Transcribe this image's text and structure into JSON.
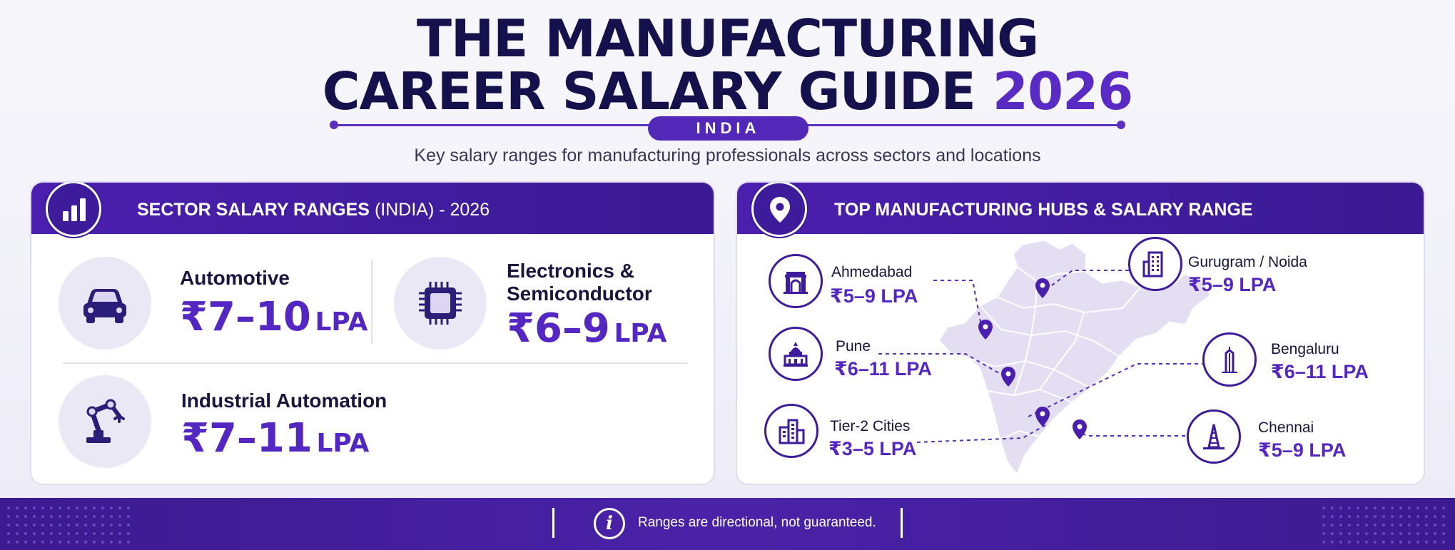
{
  "header": {
    "title_line1": "THE MANUFACTURING",
    "title_line2_main": "CAREER SALARY GUIDE",
    "title_line2_accent": "2026",
    "country_pill": "INDIA",
    "subtitle": "Key salary ranges for manufacturing professionals across sectors and locations"
  },
  "sectors_panel": {
    "title_bold": "SECTOR SALARY RANGES",
    "title_light": "(INDIA) - 2026",
    "icon": "bar-chart-icon",
    "sectors": [
      {
        "name": "Automotive",
        "range": "₹7–10",
        "unit": "LPA",
        "icon": "car-icon"
      },
      {
        "name_line1": "Electronics &",
        "name_line2": "Semiconductor",
        "range": "₹6–9",
        "unit": "LPA",
        "icon": "microchip-icon"
      },
      {
        "name": "Industrial Automation",
        "range": "₹7–11",
        "unit": "LPA",
        "icon": "robotic-arm-icon"
      }
    ]
  },
  "hubs_panel": {
    "title": "TOP MANUFACTURING HUBS & SALARY RANGE",
    "icon": "location-pin-icon",
    "hubs": [
      {
        "name": "Ahmedabad",
        "range": "₹5–9 LPA",
        "icon": "gateway-monument-icon"
      },
      {
        "name": "Pune",
        "range": "₹6–11 LPA",
        "icon": "palace-icon"
      },
      {
        "name": "Tier-2 Cities",
        "range": "₹3–5 LPA",
        "icon": "city-buildings-icon"
      },
      {
        "name": "Gurugram / Noida",
        "range": "₹5–9 LPA",
        "icon": "office-tower-icon"
      },
      {
        "name": "Bengaluru",
        "range": "₹6–11 LPA",
        "icon": "skyscraper-icon"
      },
      {
        "name": "Chennai",
        "range": "₹5–9 LPA",
        "icon": "temple-icon"
      }
    ]
  },
  "footer": {
    "icon": "info-icon",
    "note": "Ranges are directional, not guaranteed."
  },
  "colors": {
    "navy": "#14114d",
    "accent_purple": "#5527c2",
    "header_purple": "#4a1fae",
    "footer_purple": "#3c1a8f"
  }
}
